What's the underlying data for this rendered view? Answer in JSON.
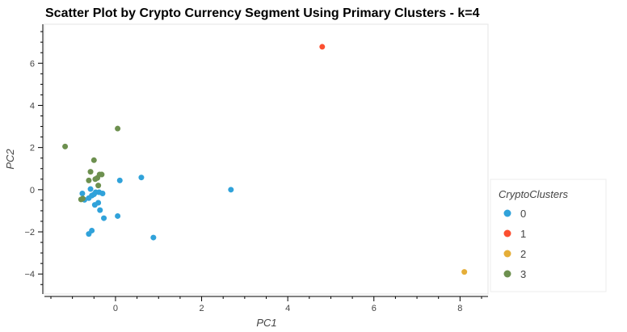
{
  "chart_data": {
    "type": "scatter",
    "title": "Scatter Plot by Crypto Currency Segment Using Primary Clusters - k=4",
    "xlabel": "PC1",
    "ylabel": "PC2",
    "xlim": [
      -1.65,
      8.65
    ],
    "ylim": [
      -4.95,
      7.85
    ],
    "xticks": [
      0,
      2,
      4,
      6,
      8
    ],
    "xtick_labels": [
      "0",
      "2",
      "4",
      "6",
      "8"
    ],
    "yticks": [
      -4,
      -2,
      0,
      2,
      4,
      6
    ],
    "ytick_labels": [
      "−4",
      "−2",
      "0",
      "2",
      "4",
      "6"
    ],
    "grid": false,
    "legend": {
      "title": "CryptoClusters",
      "placement": "right"
    },
    "series": [
      {
        "name": "0",
        "color": "#30a2da",
        "points": [
          [
            -0.77,
            -0.18
          ],
          [
            -0.72,
            -0.48
          ],
          [
            -0.62,
            -0.4
          ],
          [
            -0.58,
            0.03
          ],
          [
            -0.55,
            -0.28
          ],
          [
            -0.5,
            -0.22
          ],
          [
            -0.46,
            -0.12
          ],
          [
            -0.38,
            -0.12
          ],
          [
            -0.3,
            -0.18
          ],
          [
            -0.48,
            -0.72
          ],
          [
            -0.4,
            -0.62
          ],
          [
            -0.36,
            -0.97
          ],
          [
            -0.27,
            -1.35
          ],
          [
            0.05,
            -1.25
          ],
          [
            0.1,
            0.44
          ],
          [
            0.6,
            0.58
          ],
          [
            0.88,
            -2.27
          ],
          [
            -0.62,
            -2.1
          ],
          [
            -0.55,
            -1.94
          ],
          [
            2.68,
            0.0
          ]
        ]
      },
      {
        "name": "1",
        "color": "#fc4f30",
        "points": [
          [
            4.8,
            6.78
          ]
        ]
      },
      {
        "name": "2",
        "color": "#e5ae38",
        "points": [
          [
            8.1,
            -3.9
          ]
        ]
      },
      {
        "name": "3",
        "color": "#6d904f",
        "points": [
          [
            -1.17,
            2.05
          ],
          [
            0.05,
            2.9
          ],
          [
            -0.5,
            1.4
          ],
          [
            -0.58,
            0.85
          ],
          [
            -0.37,
            0.72
          ],
          [
            -0.32,
            0.72
          ],
          [
            -0.42,
            0.56
          ],
          [
            -0.47,
            0.5
          ],
          [
            -0.62,
            0.44
          ],
          [
            -0.4,
            0.2
          ],
          [
            -0.8,
            -0.46
          ],
          [
            -0.76,
            -0.42
          ]
        ]
      }
    ]
  }
}
